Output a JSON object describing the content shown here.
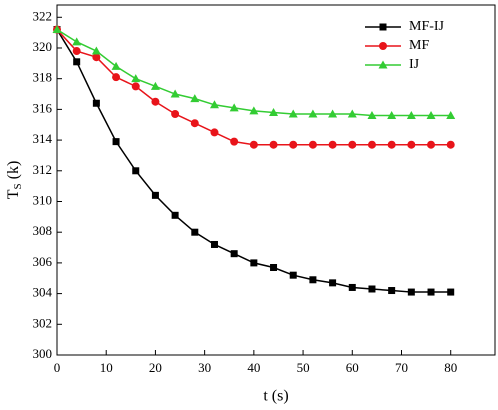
{
  "chart_data": {
    "type": "line",
    "x_label": "t (s)",
    "y_label": {
      "main": "T",
      "sub": "S",
      "unit": "(k)"
    },
    "x": [
      0,
      4,
      8,
      12,
      16,
      20,
      24,
      28,
      32,
      36,
      40,
      44,
      48,
      52,
      56,
      60,
      64,
      68,
      72,
      76,
      80
    ],
    "series": [
      {
        "name": "MF-IJ",
        "color": "#000000",
        "marker": "square",
        "values": [
          321.2,
          319.1,
          316.4,
          313.9,
          312.0,
          310.4,
          309.1,
          308.0,
          307.2,
          306.6,
          306.0,
          305.7,
          305.2,
          304.9,
          304.7,
          304.4,
          304.3,
          304.2,
          304.1,
          304.1,
          304.1
        ]
      },
      {
        "name": "MF",
        "color": "#e8141a",
        "marker": "circle",
        "values": [
          321.2,
          319.8,
          319.4,
          318.1,
          317.5,
          316.5,
          315.7,
          315.1,
          314.5,
          313.9,
          313.7,
          313.7,
          313.7,
          313.7,
          313.7,
          313.7,
          313.7,
          313.7,
          313.7,
          313.7,
          313.7
        ]
      },
      {
        "name": "IJ",
        "color": "#33cc33",
        "marker": "triangle",
        "values": [
          321.2,
          320.4,
          319.8,
          318.8,
          318.0,
          317.5,
          317.0,
          316.7,
          316.3,
          316.1,
          315.9,
          315.8,
          315.7,
          315.7,
          315.7,
          315.7,
          315.6,
          315.6,
          315.6,
          315.6,
          315.6
        ]
      }
    ],
    "xlim": [
      0,
      89
    ],
    "ylim": [
      300,
      322.8
    ],
    "xticks": [
      0,
      10,
      20,
      30,
      40,
      50,
      60,
      70,
      80
    ],
    "yticks": [
      300,
      302,
      304,
      306,
      308,
      310,
      312,
      314,
      316,
      318,
      320,
      322
    ],
    "legend": "upper right"
  }
}
